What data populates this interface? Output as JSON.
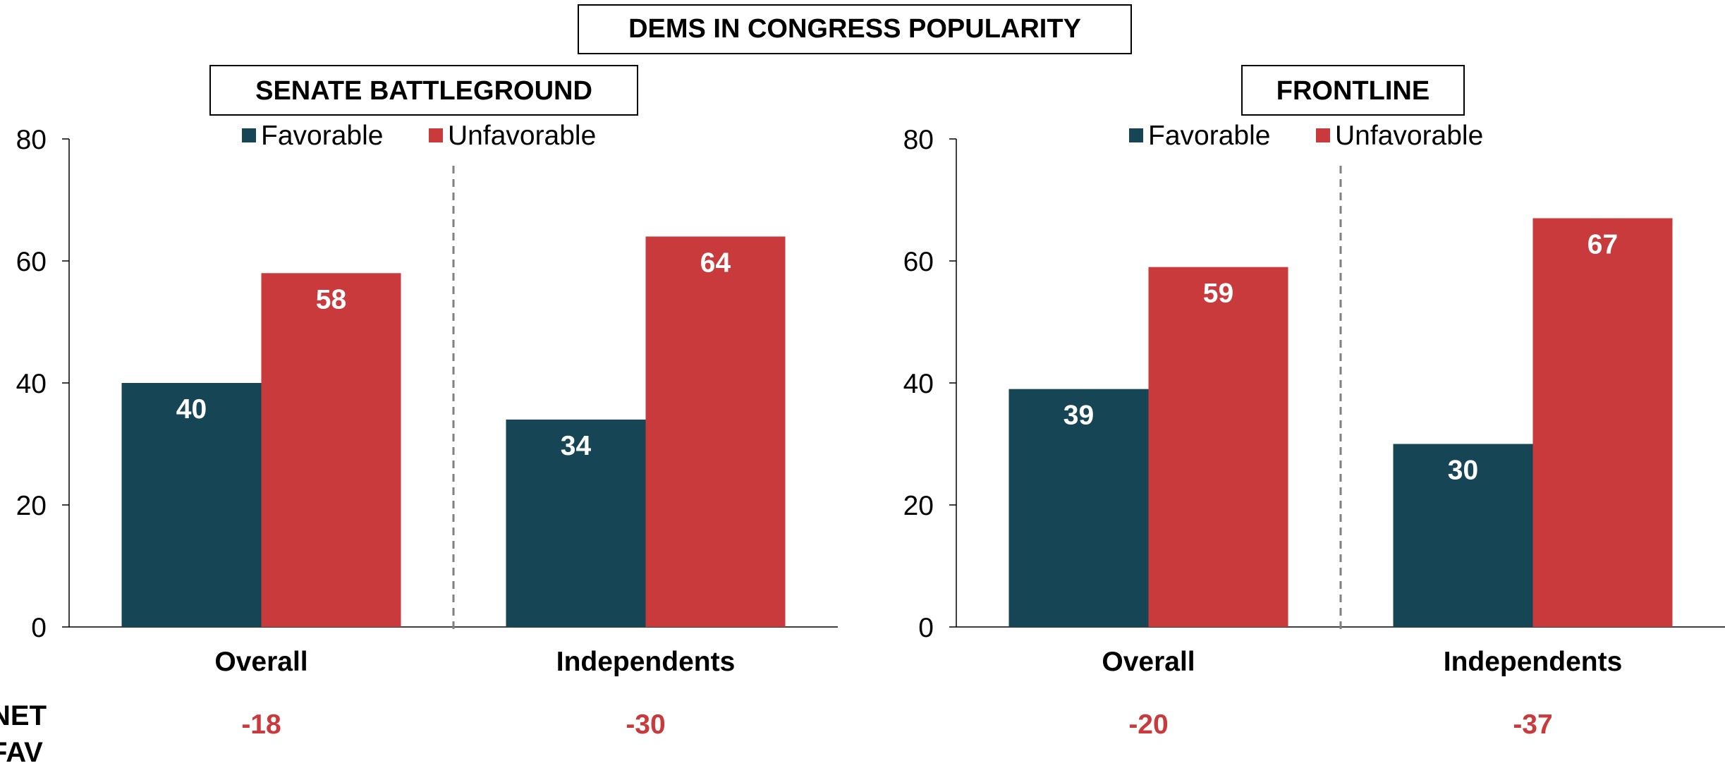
{
  "main_title": "DEMS IN CONGRESS POPULARITY",
  "net_label": [
    "NET",
    "FAV"
  ],
  "colors": {
    "favorable": "#164555",
    "unfavorable": "#C93A3C",
    "net": "#C93A3C",
    "axis": "#000000",
    "divider": "#808080"
  },
  "chart_data": [
    {
      "type": "bar",
      "title": "SENATE BATTLEGROUND",
      "categories": [
        "Overall",
        "Independents"
      ],
      "series": [
        {
          "name": "Favorable",
          "values": [
            40,
            34
          ]
        },
        {
          "name": "Unfavorable",
          "values": [
            58,
            64
          ]
        }
      ],
      "ylim": [
        0,
        80
      ],
      "yticks": [
        0,
        20,
        40,
        60,
        80
      ],
      "legend": "top",
      "grid": false,
      "net_fav": [
        "-18",
        "-30"
      ]
    },
    {
      "type": "bar",
      "title": "FRONTLINE",
      "categories": [
        "Overall",
        "Independents"
      ],
      "series": [
        {
          "name": "Favorable",
          "values": [
            39,
            30
          ]
        },
        {
          "name": "Unfavorable",
          "values": [
            59,
            67
          ]
        }
      ],
      "ylim": [
        0,
        80
      ],
      "yticks": [
        0,
        20,
        40,
        60,
        80
      ],
      "legend": "top",
      "grid": false,
      "net_fav": [
        "-20",
        "-37"
      ]
    }
  ]
}
